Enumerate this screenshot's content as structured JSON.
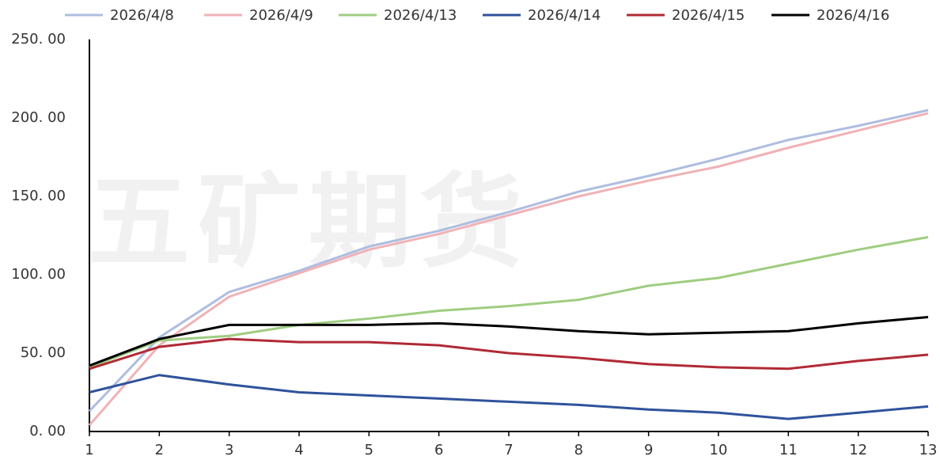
{
  "chart_data": {
    "type": "line",
    "watermark": "五矿期货",
    "x": [
      1,
      2,
      3,
      4,
      5,
      6,
      7,
      8,
      9,
      10,
      11,
      12,
      13
    ],
    "xlim": [
      1,
      13
    ],
    "xticks": [
      1,
      2,
      3,
      4,
      5,
      6,
      7,
      8,
      9,
      10,
      11,
      12,
      13
    ],
    "ylim": [
      0,
      250
    ],
    "yticks": [
      {
        "value": 0,
        "label": "0. 00"
      },
      {
        "value": 50,
        "label": "50. 00"
      },
      {
        "value": 100,
        "label": "100. 00"
      },
      {
        "value": 150,
        "label": "150. 00"
      },
      {
        "value": 200,
        "label": "200. 00"
      },
      {
        "value": 250,
        "label": "250. 00"
      }
    ],
    "legend": "top",
    "series": [
      {
        "name": "2026/4/8",
        "color": "#aebde0",
        "values": [
          13,
          60,
          89,
          102.5,
          118,
          128,
          140,
          153,
          163,
          174,
          186,
          195,
          205
        ]
      },
      {
        "name": "2026/4/9",
        "color": "#f0b2b6",
        "values": [
          4,
          55,
          86,
          101,
          116,
          126,
          138,
          150,
          160,
          169,
          181,
          192,
          203
        ]
      },
      {
        "name": "2026/4/13",
        "color": "#9fcd80",
        "values": [
          41,
          58,
          61,
          68,
          72,
          77,
          80,
          84,
          93,
          98,
          107,
          116,
          124
        ]
      },
      {
        "name": "2026/4/14",
        "color": "#2f529b",
        "values": [
          25,
          36,
          30,
          25,
          23,
          21,
          19,
          17,
          14,
          12,
          8,
          12,
          16
        ]
      },
      {
        "name": "2026/4/15",
        "color": "#b02a35",
        "values": [
          40,
          54,
          59,
          57,
          57,
          55,
          50,
          47,
          43,
          41,
          40,
          45,
          49
        ]
      },
      {
        "name": "2026/4/16",
        "color": "#000000",
        "values": [
          42,
          59,
          68,
          68,
          68,
          69,
          67,
          64,
          62,
          63,
          64,
          69,
          73
        ]
      }
    ]
  }
}
